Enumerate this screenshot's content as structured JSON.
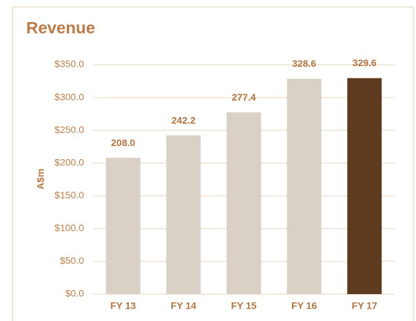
{
  "chart_data": {
    "type": "bar",
    "title": "Revenue",
    "y_label": "A$m",
    "categories": [
      "FY 13",
      "FY 14",
      "FY 15",
      "FY 16",
      "FY 17"
    ],
    "values": [
      208.0,
      242.2,
      277.4,
      328.6,
      329.6
    ],
    "value_labels": [
      "208.0",
      "242.2",
      "277.4",
      "328.6",
      "329.6"
    ],
    "colors": [
      "#d9d0c6",
      "#d9d0c6",
      "#d9d0c6",
      "#d9d0c6",
      "#5e3b1f"
    ],
    "ylim": [
      0,
      350
    ],
    "yticks": [
      {
        "value": 0,
        "label": "$0.0"
      },
      {
        "value": 50,
        "label": "$50.0"
      },
      {
        "value": 100,
        "label": "$100.0"
      },
      {
        "value": 150,
        "label": "$150.0"
      },
      {
        "value": 200,
        "label": "$200.0"
      },
      {
        "value": 250,
        "label": "$250.0"
      },
      {
        "value": 300,
        "label": "$300.0"
      },
      {
        "value": 350,
        "label": "$350.0"
      }
    ],
    "grid": true
  }
}
